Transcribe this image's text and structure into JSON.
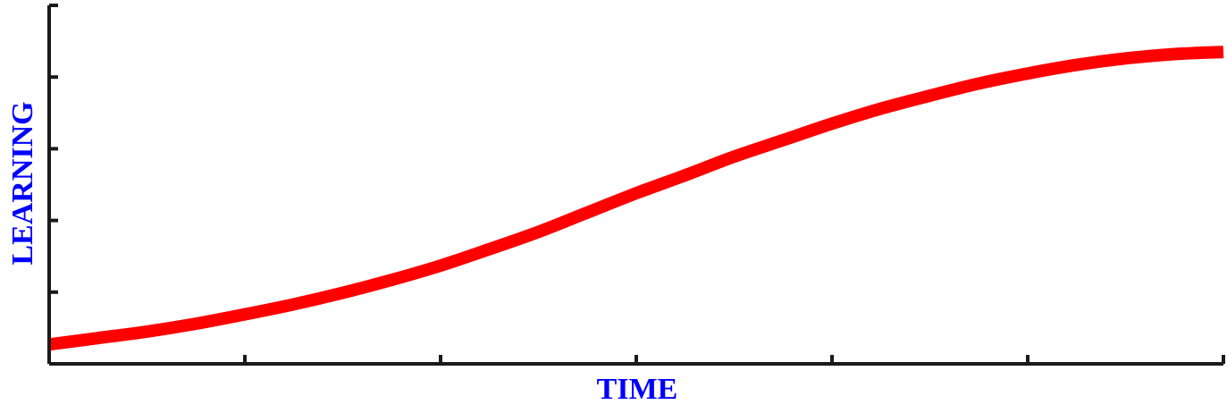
{
  "chart_data": {
    "type": "line",
    "title": "",
    "xlabel": "TIME",
    "ylabel": "LEARNING",
    "xlim": [
      0,
      6
    ],
    "ylim": [
      0,
      5
    ],
    "x_ticks": [
      0,
      1,
      2,
      3,
      4,
      5,
      6
    ],
    "y_ticks": [
      0,
      1,
      2,
      3,
      4,
      5
    ],
    "grid": false,
    "legend": "none",
    "colors": {
      "axis": "#1a1a1a",
      "label": "#0000ff",
      "series": "#ff0000"
    },
    "series": [
      {
        "color": "#ff0000",
        "x": [
          0,
          0.25,
          0.5,
          0.75,
          1,
          1.25,
          1.5,
          1.75,
          2,
          2.25,
          2.5,
          2.75,
          3,
          3.25,
          3.5,
          3.75,
          4,
          4.25,
          4.5,
          4.75,
          5,
          5.25,
          5.5,
          5.75,
          6
        ],
        "y": [
          0.27,
          0.36,
          0.45,
          0.56,
          0.69,
          0.83,
          0.99,
          1.17,
          1.37,
          1.6,
          1.84,
          2.11,
          2.38,
          2.63,
          2.89,
          3.12,
          3.35,
          3.56,
          3.74,
          3.91,
          4.05,
          4.17,
          4.26,
          4.32,
          4.35
        ]
      }
    ]
  }
}
